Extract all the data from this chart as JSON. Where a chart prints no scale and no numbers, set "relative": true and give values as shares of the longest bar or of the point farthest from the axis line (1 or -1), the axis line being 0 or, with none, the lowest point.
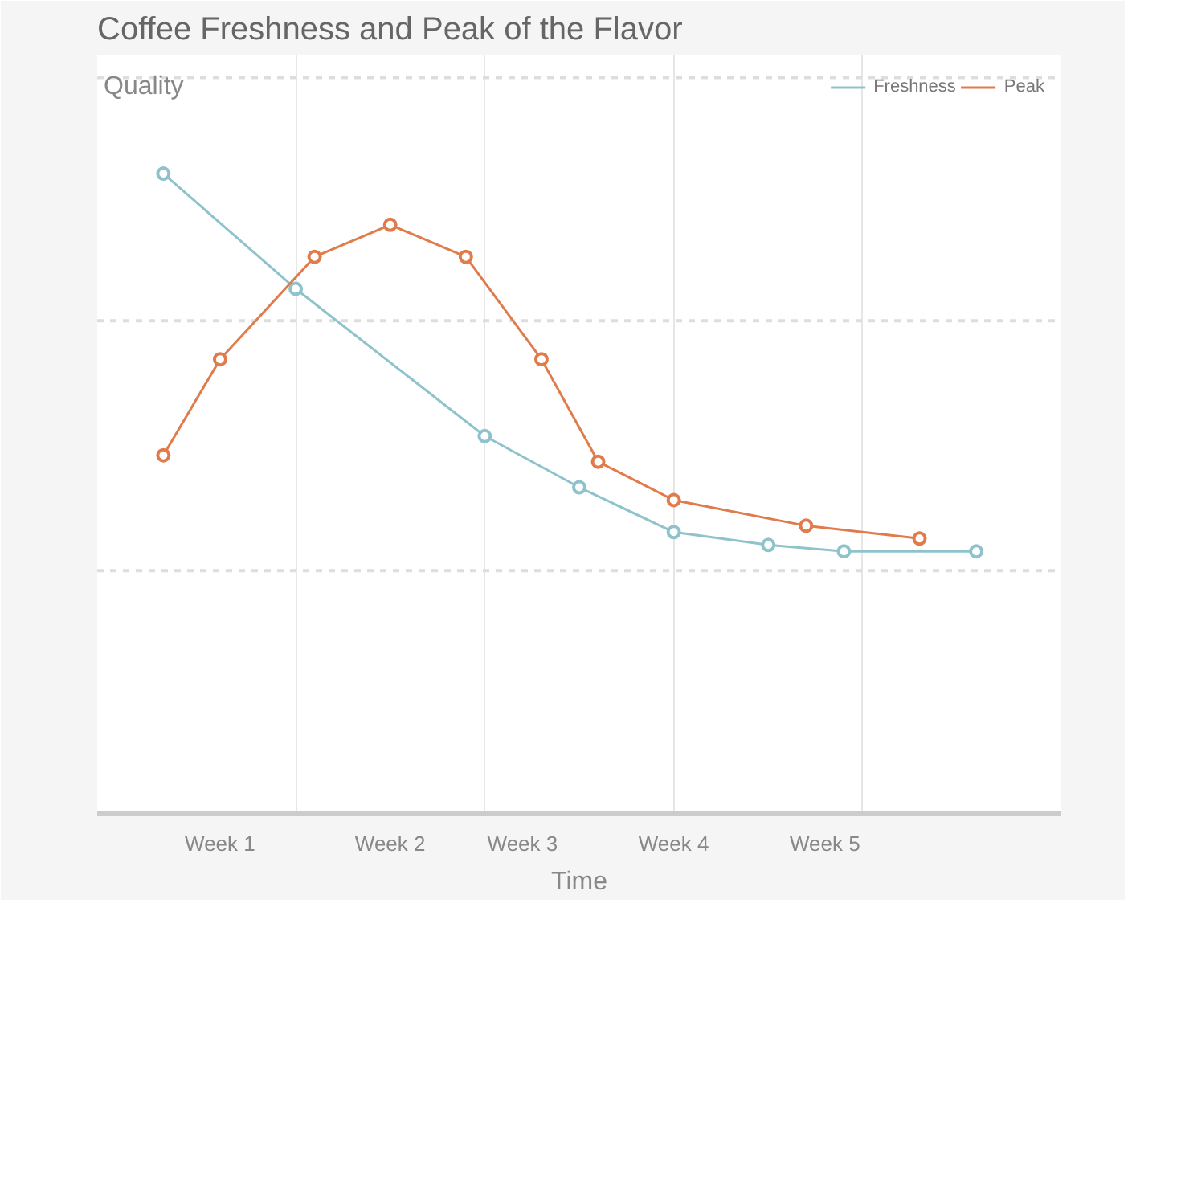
{
  "chart_data": {
    "type": "line",
    "title": "Coffee Freshness and Peak of the Flavor",
    "xlabel": "Time",
    "ylabel": "Quality",
    "relative": true,
    "categories": [
      null,
      null,
      null,
      null,
      null,
      null,
      "Week 1",
      null,
      null,
      null,
      null,
      null,
      null,
      null,
      null,
      "Week 2",
      null,
      null,
      null,
      null,
      null,
      null,
      "Week 3",
      null,
      null,
      null,
      null,
      null,
      null,
      null,
      "Week 4",
      null,
      null,
      null,
      null,
      null,
      null,
      null,
      "Week 5",
      null,
      null,
      null,
      null,
      null,
      null,
      null,
      null,
      null,
      null,
      null,
      null
    ],
    "legend": "top right",
    "marker": "circle",
    "line_style": "solid",
    "ref_lines": [
      {
        "axis": "y",
        "value": 1.15,
        "line_style": "dashed",
        "color": "#dddddd"
      },
      {
        "axis": "y",
        "value": 0.77,
        "line_style": "dashed",
        "color": "#dddddd"
      },
      {
        "axis": "y",
        "value": 0.38,
        "line_style": "dashed",
        "color": "#dddddd"
      }
    ],
    "grid": "x",
    "series": [
      {
        "name": "Freshness",
        "color": "#8fc3cc",
        "values": [
          null,
          null,
          null,
          1,
          null,
          null,
          null,
          null,
          null,
          null,
          0.82,
          null,
          null,
          null,
          null,
          null,
          null,
          null,
          null,
          null,
          0.59,
          null,
          null,
          null,
          null,
          0.51,
          null,
          null,
          null,
          null,
          0.44,
          null,
          null,
          null,
          null,
          0.42,
          null,
          null,
          null,
          0.41,
          null,
          null,
          null,
          null,
          null,
          null,
          0.41,
          null,
          null,
          null,
          null
        ]
      },
      {
        "name": "Peak",
        "color": "#e07b4c",
        "values": [
          null,
          null,
          null,
          0.56,
          null,
          null,
          0.71,
          null,
          null,
          null,
          null,
          0.87,
          null,
          null,
          null,
          0.92,
          null,
          null,
          null,
          0.87,
          null,
          null,
          null,
          0.71,
          null,
          null,
          0.55,
          null,
          null,
          null,
          0.49,
          null,
          null,
          null,
          null,
          null,
          null,
          0.45,
          null,
          null,
          null,
          null,
          null,
          0.43,
          null,
          null,
          null,
          null,
          null,
          null,
          null
        ]
      }
    ]
  }
}
